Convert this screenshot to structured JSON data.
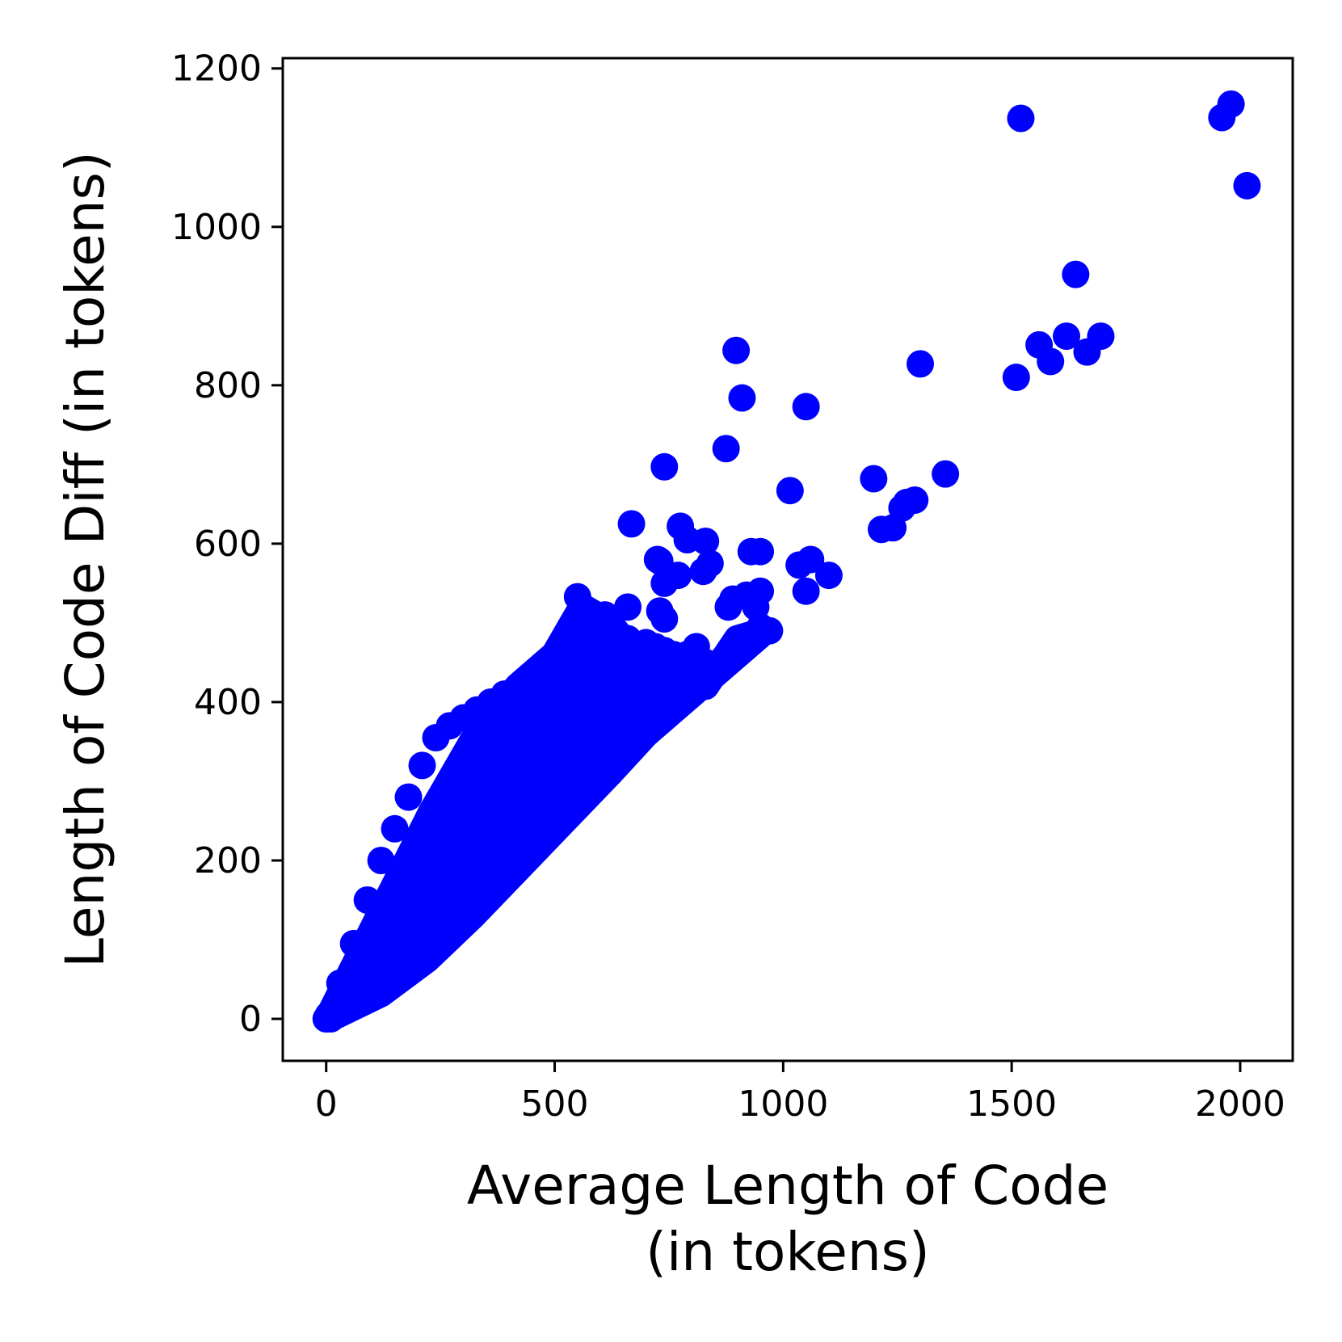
{
  "chart_data": {
    "type": "scatter",
    "xlabel_lines": [
      "Average Length of Code",
      "(in tokens)"
    ],
    "ylabel": "Length of Code Diff (in tokens)",
    "xlim": [
      -95,
      2115
    ],
    "ylim": [
      -53,
      1213
    ],
    "xticks": [
      0,
      500,
      1000,
      1500,
      2000
    ],
    "yticks": [
      0,
      200,
      400,
      600,
      800,
      1000,
      1200
    ],
    "grid": false,
    "marker_color": "#0000ff",
    "dense_band": {
      "description": "dense cluster of points between lines y = 1.75x and y = 0.6x up to x ≈ 550",
      "polygon": [
        [
          0,
          0
        ],
        [
          5,
          2
        ],
        [
          230,
          260
        ],
        [
          330,
          360
        ],
        [
          420,
          420
        ],
        [
          500,
          460
        ],
        [
          560,
          520
        ],
        [
          620,
          500
        ],
        [
          660,
          470
        ],
        [
          700,
          460
        ],
        [
          760,
          440
        ],
        [
          830,
          420
        ],
        [
          900,
          480
        ],
        [
          960,
          490
        ],
        [
          900,
          460
        ],
        [
          800,
          410
        ],
        [
          700,
          360
        ],
        [
          620,
          310
        ],
        [
          520,
          250
        ],
        [
          420,
          190
        ],
        [
          320,
          130
        ],
        [
          220,
          75
        ],
        [
          120,
          32
        ],
        [
          20,
          4
        ]
      ]
    },
    "points": [
      {
        "x": 5,
        "y": 5
      },
      {
        "x": 8,
        "y": 3
      },
      {
        "x": 10,
        "y": 0
      },
      {
        "x": 30,
        "y": 45
      },
      {
        "x": 60,
        "y": 95
      },
      {
        "x": 90,
        "y": 150
      },
      {
        "x": 120,
        "y": 200
      },
      {
        "x": 150,
        "y": 240
      },
      {
        "x": 180,
        "y": 280
      },
      {
        "x": 210,
        "y": 320
      },
      {
        "x": 240,
        "y": 355
      },
      {
        "x": 270,
        "y": 370
      },
      {
        "x": 300,
        "y": 380
      },
      {
        "x": 330,
        "y": 390
      },
      {
        "x": 360,
        "y": 400
      },
      {
        "x": 390,
        "y": 410
      },
      {
        "x": 420,
        "y": 420
      },
      {
        "x": 450,
        "y": 430
      },
      {
        "x": 470,
        "y": 440
      },
      {
        "x": 500,
        "y": 450
      },
      {
        "x": 520,
        "y": 460
      },
      {
        "x": 540,
        "y": 470
      },
      {
        "x": 560,
        "y": 480
      },
      {
        "x": 570,
        "y": 495
      },
      {
        "x": 590,
        "y": 510
      },
      {
        "x": 610,
        "y": 500
      },
      {
        "x": 630,
        "y": 490
      },
      {
        "x": 660,
        "y": 480
      },
      {
        "x": 680,
        "y": 470
      },
      {
        "x": 700,
        "y": 475
      },
      {
        "x": 720,
        "y": 470
      },
      {
        "x": 740,
        "y": 465
      },
      {
        "x": 760,
        "y": 460
      },
      {
        "x": 790,
        "y": 460
      },
      {
        "x": 810,
        "y": 470
      },
      {
        "x": 830,
        "y": 450
      },
      {
        "x": 850,
        "y": 440
      },
      {
        "x": 870,
        "y": 455
      },
      {
        "x": 890,
        "y": 460
      },
      {
        "x": 910,
        "y": 475
      },
      {
        "x": 930,
        "y": 485
      },
      {
        "x": 950,
        "y": 495
      },
      {
        "x": 970,
        "y": 490
      },
      {
        "x": 880,
        "y": 520
      },
      {
        "x": 890,
        "y": 530
      },
      {
        "x": 940,
        "y": 520
      },
      {
        "x": 950,
        "y": 540
      },
      {
        "x": 920,
        "y": 535
      },
      {
        "x": 730,
        "y": 515
      },
      {
        "x": 740,
        "y": 505
      },
      {
        "x": 660,
        "y": 520
      },
      {
        "x": 610,
        "y": 510
      },
      {
        "x": 590,
        "y": 490
      },
      {
        "x": 550,
        "y": 533
      },
      {
        "x": 668,
        "y": 625
      },
      {
        "x": 740,
        "y": 697
      },
      {
        "x": 775,
        "y": 622
      },
      {
        "x": 790,
        "y": 605
      },
      {
        "x": 830,
        "y": 603
      },
      {
        "x": 840,
        "y": 575
      },
      {
        "x": 825,
        "y": 565
      },
      {
        "x": 770,
        "y": 560
      },
      {
        "x": 740,
        "y": 550
      },
      {
        "x": 725,
        "y": 580
      },
      {
        "x": 730,
        "y": 578
      },
      {
        "x": 875,
        "y": 720
      },
      {
        "x": 897,
        "y": 844
      },
      {
        "x": 910,
        "y": 784
      },
      {
        "x": 1050,
        "y": 773
      },
      {
        "x": 1015,
        "y": 667
      },
      {
        "x": 930,
        "y": 590
      },
      {
        "x": 950,
        "y": 590
      },
      {
        "x": 1035,
        "y": 573
      },
      {
        "x": 1060,
        "y": 580
      },
      {
        "x": 1100,
        "y": 560
      },
      {
        "x": 1050,
        "y": 540
      },
      {
        "x": 1198,
        "y": 682
      },
      {
        "x": 1215,
        "y": 618
      },
      {
        "x": 1240,
        "y": 620
      },
      {
        "x": 1260,
        "y": 645
      },
      {
        "x": 1270,
        "y": 652
      },
      {
        "x": 1288,
        "y": 655
      },
      {
        "x": 1355,
        "y": 688
      },
      {
        "x": 1300,
        "y": 827
      },
      {
        "x": 1510,
        "y": 810
      },
      {
        "x": 1520,
        "y": 1137
      },
      {
        "x": 1560,
        "y": 851
      },
      {
        "x": 1585,
        "y": 830
      },
      {
        "x": 1620,
        "y": 862
      },
      {
        "x": 1640,
        "y": 940
      },
      {
        "x": 1665,
        "y": 842
      },
      {
        "x": 1695,
        "y": 862
      },
      {
        "x": 1960,
        "y": 1138
      },
      {
        "x": 1980,
        "y": 1155
      },
      {
        "x": 2015,
        "y": 1052
      }
    ]
  }
}
